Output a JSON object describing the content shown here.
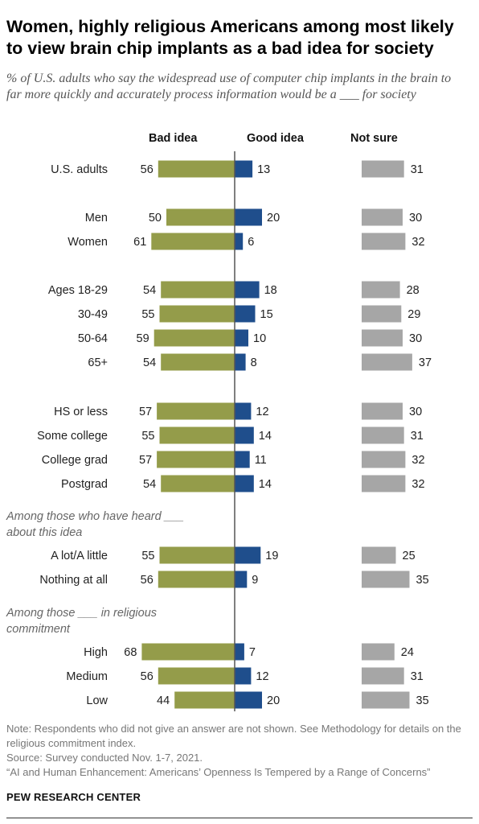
{
  "title": "Women, highly religious Americans among most likely to view brain chip implants as a bad idea for society",
  "subtitle": "% of U.S. adults who say the widespread use of computer chip implants in the brain to far more quickly and accurately process information would be a ___ for society",
  "groups": {
    "heard": "Among those who have heard ___ about this idea",
    "commitment": "Among those ___ in religious commitment"
  },
  "notes": {
    "note": "Note: Respondents who did not give an answer are not shown. See Methodology for details on the religious commitment index.",
    "source": "Source: Survey conducted Nov. 1-7, 2021.",
    "report": "“AI and Human Enhancement: Americans’ Openness Is Tempered by a Range of Concerns”"
  },
  "brand": "PEW RESEARCH CENTER",
  "colors": {
    "bad": "#949c4a",
    "good": "#1f4e8c",
    "notsure": "#a6a6a6",
    "axis": "#555555"
  },
  "chart_data": {
    "type": "bar",
    "orientation": "horizontal",
    "categories": [
      "U.S. adults",
      "Men",
      "Women",
      "Ages 18-29",
      "30-49",
      "50-64",
      "65+",
      "HS or less",
      "Some college",
      "College grad",
      "Postgrad",
      "A lot/A little",
      "Nothing at all",
      "High",
      "Medium",
      "Low"
    ],
    "series": [
      {
        "name": "Bad idea",
        "values": [
          56,
          50,
          61,
          54,
          55,
          59,
          54,
          57,
          55,
          57,
          54,
          55,
          56,
          68,
          56,
          44
        ]
      },
      {
        "name": "Good idea",
        "values": [
          13,
          20,
          6,
          18,
          15,
          10,
          8,
          12,
          14,
          11,
          14,
          19,
          9,
          7,
          12,
          20
        ]
      },
      {
        "name": "Not sure",
        "values": [
          31,
          30,
          32,
          28,
          29,
          30,
          37,
          30,
          31,
          32,
          32,
          25,
          35,
          24,
          31,
          35
        ]
      }
    ]
  }
}
